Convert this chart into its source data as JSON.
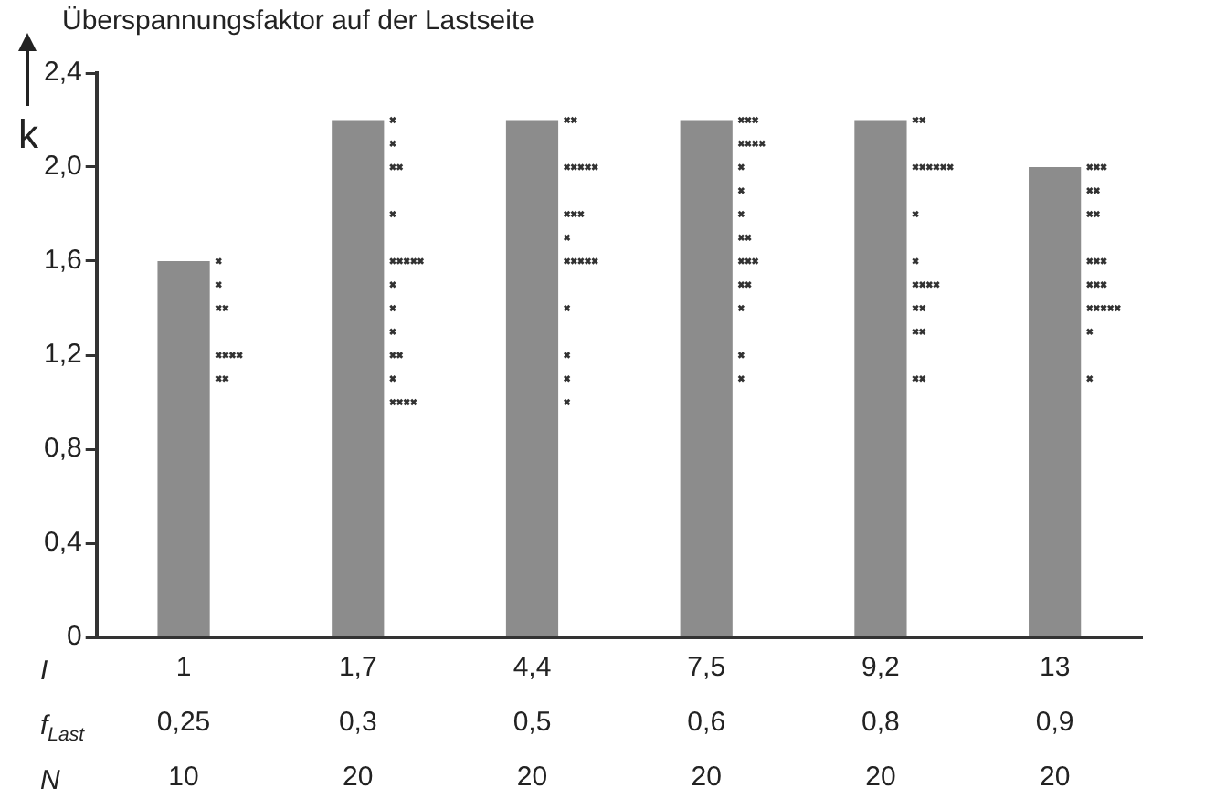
{
  "chart_data": {
    "type": "bar",
    "title": "Überspannungsfaktor auf der Lastseite",
    "ylabel": "k",
    "categories": [
      "1\n0,25\n10",
      "1,7\n0,3\n20",
      "4,4\n0,5\n20",
      "7,5\n0,6\n20",
      "9,2\n0,8\n20",
      "13\n0,9\n20"
    ],
    "series": [
      {
        "color": "#8c8c8c",
        "values": [
          1.6,
          2.2,
          2.2,
          2.2,
          2.2,
          2.0
        ]
      },
      {
        "type": "scatter",
        "color": "#333333",
        "x": [
          "1\n0,25\n10",
          "1\n0,25\n10",
          "1\n0,25\n10",
          "1\n0,25\n10",
          "1\n0,25\n10",
          "1\n0,25\n10",
          "1\n0,25\n10",
          "1\n0,25\n10",
          "1\n0,25\n10",
          "1\n0,25\n10",
          "1,7\n0,3\n20",
          "1,7\n0,3\n20",
          "1,7\n0,3\n20",
          "1,7\n0,3\n20",
          "1,7\n0,3\n20",
          "1,7\n0,3\n20",
          "1,7\n0,3\n20",
          "1,7\n0,3\n20",
          "1,7\n0,3\n20",
          "1,7\n0,3\n20",
          "1,7\n0,3\n20",
          "1,7\n0,3\n20",
          "1,7\n0,3\n20",
          "1,7\n0,3\n20",
          "1,7\n0,3\n20",
          "1,7\n0,3\n20",
          "1,7\n0,3\n20",
          "1,7\n0,3\n20",
          "1,7\n0,3\n20",
          "1,7\n0,3\n20",
          "4,4\n0,5\n20",
          "4,4\n0,5\n20",
          "4,4\n0,5\n20",
          "4,4\n0,5\n20",
          "4,4\n0,5\n20",
          "4,4\n0,5\n20",
          "4,4\n0,5\n20",
          "4,4\n0,5\n20",
          "4,4\n0,5\n20",
          "4,4\n0,5\n20",
          "4,4\n0,5\n20",
          "4,4\n0,5\n20",
          "4,4\n0,5\n20",
          "4,4\n0,5\n20",
          "4,4\n0,5\n20",
          "4,4\n0,5\n20",
          "4,4\n0,5\n20",
          "4,4\n0,5\n20",
          "4,4\n0,5\n20",
          "4,4\n0,5\n20",
          "7,5\n0,6\n20",
          "7,5\n0,6\n20",
          "7,5\n0,6\n20",
          "7,5\n0,6\n20",
          "7,5\n0,6\n20",
          "7,5\n0,6\n20",
          "7,5\n0,6\n20",
          "7,5\n0,6\n20",
          "7,5\n0,6\n20",
          "7,5\n0,6\n20",
          "7,5\n0,6\n20",
          "7,5\n0,6\n20",
          "7,5\n0,6\n20",
          "7,5\n0,6\n20",
          "7,5\n0,6\n20",
          "7,5\n0,6\n20",
          "7,5\n0,6\n20",
          "7,5\n0,6\n20",
          "7,5\n0,6\n20",
          "7,5\n0,6\n20",
          "9,2\n0,8\n20",
          "9,2\n0,8\n20",
          "9,2\n0,8\n20",
          "9,2\n0,8\n20",
          "9,2\n0,8\n20",
          "9,2\n0,8\n20",
          "9,2\n0,8\n20",
          "9,2\n0,8\n20",
          "9,2\n0,8\n20",
          "9,2\n0,8\n20",
          "9,2\n0,8\n20",
          "9,2\n0,8\n20",
          "9,2\n0,8\n20",
          "9,2\n0,8\n20",
          "9,2\n0,8\n20",
          "9,2\n0,8\n20",
          "9,2\n0,8\n20",
          "9,2\n0,8\n20",
          "9,2\n0,8\n20",
          "9,2\n0,8\n20",
          "13\n0,9\n20",
          "13\n0,9\n20",
          "13\n0,9\n20",
          "13\n0,9\n20",
          "13\n0,9\n20",
          "13\n0,9\n20",
          "13\n0,9\n20",
          "13\n0,9\n20",
          "13\n0,9\n20",
          "13\n0,9\n20",
          "13\n0,9\n20",
          "13\n0,9\n20",
          "13\n0,9\n20",
          "13\n0,9\n20",
          "13\n0,9\n20",
          "13\n0,9\n20",
          "13\n0,9\n20",
          "13\n0,9\n20",
          "13\n0,9\n20",
          "13\n0,9\n20"
        ],
        "values": [
          1.6,
          1.5,
          1.4,
          1.4,
          1.2,
          1.2,
          1.2,
          1.2,
          1.1,
          1.1,
          2.2,
          2.1,
          2.0,
          2.0,
          1.8,
          1.6,
          1.6,
          1.6,
          1.6,
          1.6,
          1.5,
          1.4,
          1.3,
          1.2,
          1.2,
          1.1,
          1.0,
          1.0,
          1.0,
          1.0,
          2.2,
          2.2,
          2.0,
          2.0,
          2.0,
          2.0,
          2.0,
          1.8,
          1.8,
          1.8,
          1.7,
          1.6,
          1.6,
          1.6,
          1.6,
          1.6,
          1.4,
          1.2,
          1.1,
          1.0,
          2.2,
          2.2,
          2.2,
          2.1,
          2.1,
          2.1,
          2.1,
          2.0,
          1.9,
          1.8,
          1.7,
          1.7,
          1.6,
          1.6,
          1.6,
          1.5,
          1.5,
          1.4,
          1.2,
          1.1,
          2.2,
          2.2,
          2.0,
          2.0,
          2.0,
          2.0,
          2.0,
          2.0,
          1.8,
          1.6,
          1.5,
          1.5,
          1.5,
          1.5,
          1.4,
          1.4,
          1.3,
          1.3,
          1.1,
          1.1,
          2.0,
          2.0,
          2.0,
          1.9,
          1.9,
          1.8,
          1.8,
          1.6,
          1.6,
          1.6,
          1.5,
          1.5,
          1.5,
          1.4,
          1.4,
          1.4,
          1.4,
          1.4,
          1.3,
          1.1
        ]
      }
    ],
    "ylim": [
      0,
      2.4
    ],
    "yticks": [
      0,
      {
        "value": 0.4,
        "label": "0,4"
      },
      {
        "value": 0.8,
        "label": "0,8"
      },
      {
        "value": 1.2,
        "label": "1,2"
      },
      {
        "value": 1.6,
        "label": "1,6"
      },
      {
        "value": 2.0,
        "label": "2,0"
      },
      {
        "value": 2.4,
        "label": "2,4"
      }
    ],
    "annotations": [
      "I",
      "f$_{Last}$",
      "N"
    ],
    "marker": "cross",
    "grid": false,
    "legend": false
  }
}
